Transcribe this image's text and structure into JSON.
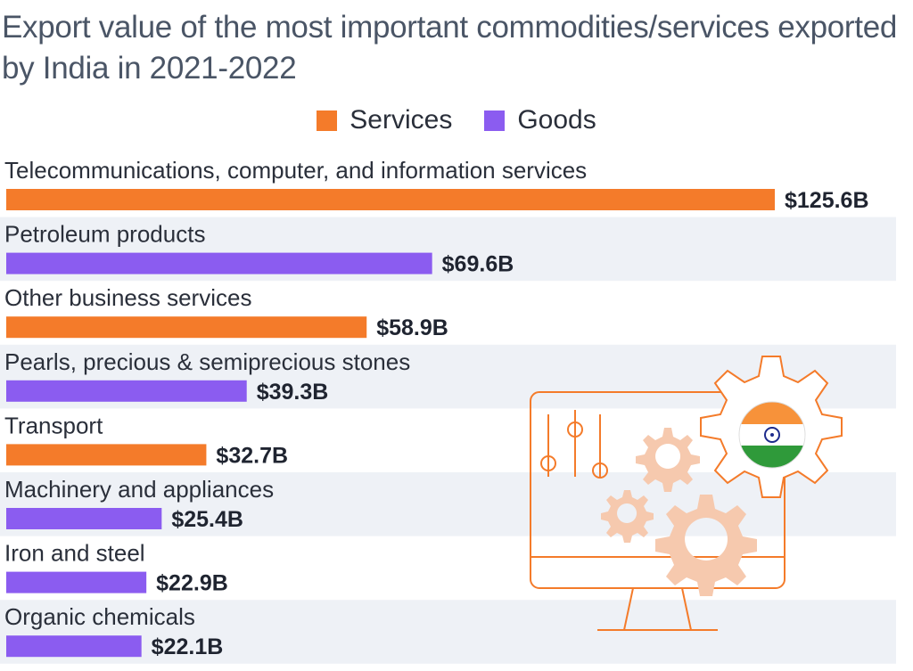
{
  "chart_data": {
    "type": "bar",
    "orientation": "horizontal",
    "title": "Export value of the most important commodities/services exported by India in 2021-2022",
    "legend_position": "top-center",
    "legend": [
      {
        "name": "Services",
        "color": "#f47b2a"
      },
      {
        "name": "Goods",
        "color": "#8b5cf0"
      }
    ],
    "categories": [
      "Telecommunications, computer, and information services",
      "Petroleum products",
      "Other business services",
      "Pearls, precious & semiprecious stones",
      "Transport",
      "Machinery and appliances",
      "Iron and steel",
      "Organic chemicals"
    ],
    "values": [
      125.6,
      69.6,
      58.9,
      39.3,
      32.7,
      25.4,
      22.9,
      22.1
    ],
    "value_labels": [
      "$125.6B",
      "$69.6B",
      "$58.9B",
      "$39.3B",
      "$32.7B",
      "$25.4B",
      "$22.9B",
      "$22.1B"
    ],
    "series_type": [
      "Services",
      "Goods",
      "Services",
      "Goods",
      "Services",
      "Goods",
      "Goods",
      "Goods"
    ],
    "xlim": [
      0,
      125.6
    ],
    "grid": false
  }
}
